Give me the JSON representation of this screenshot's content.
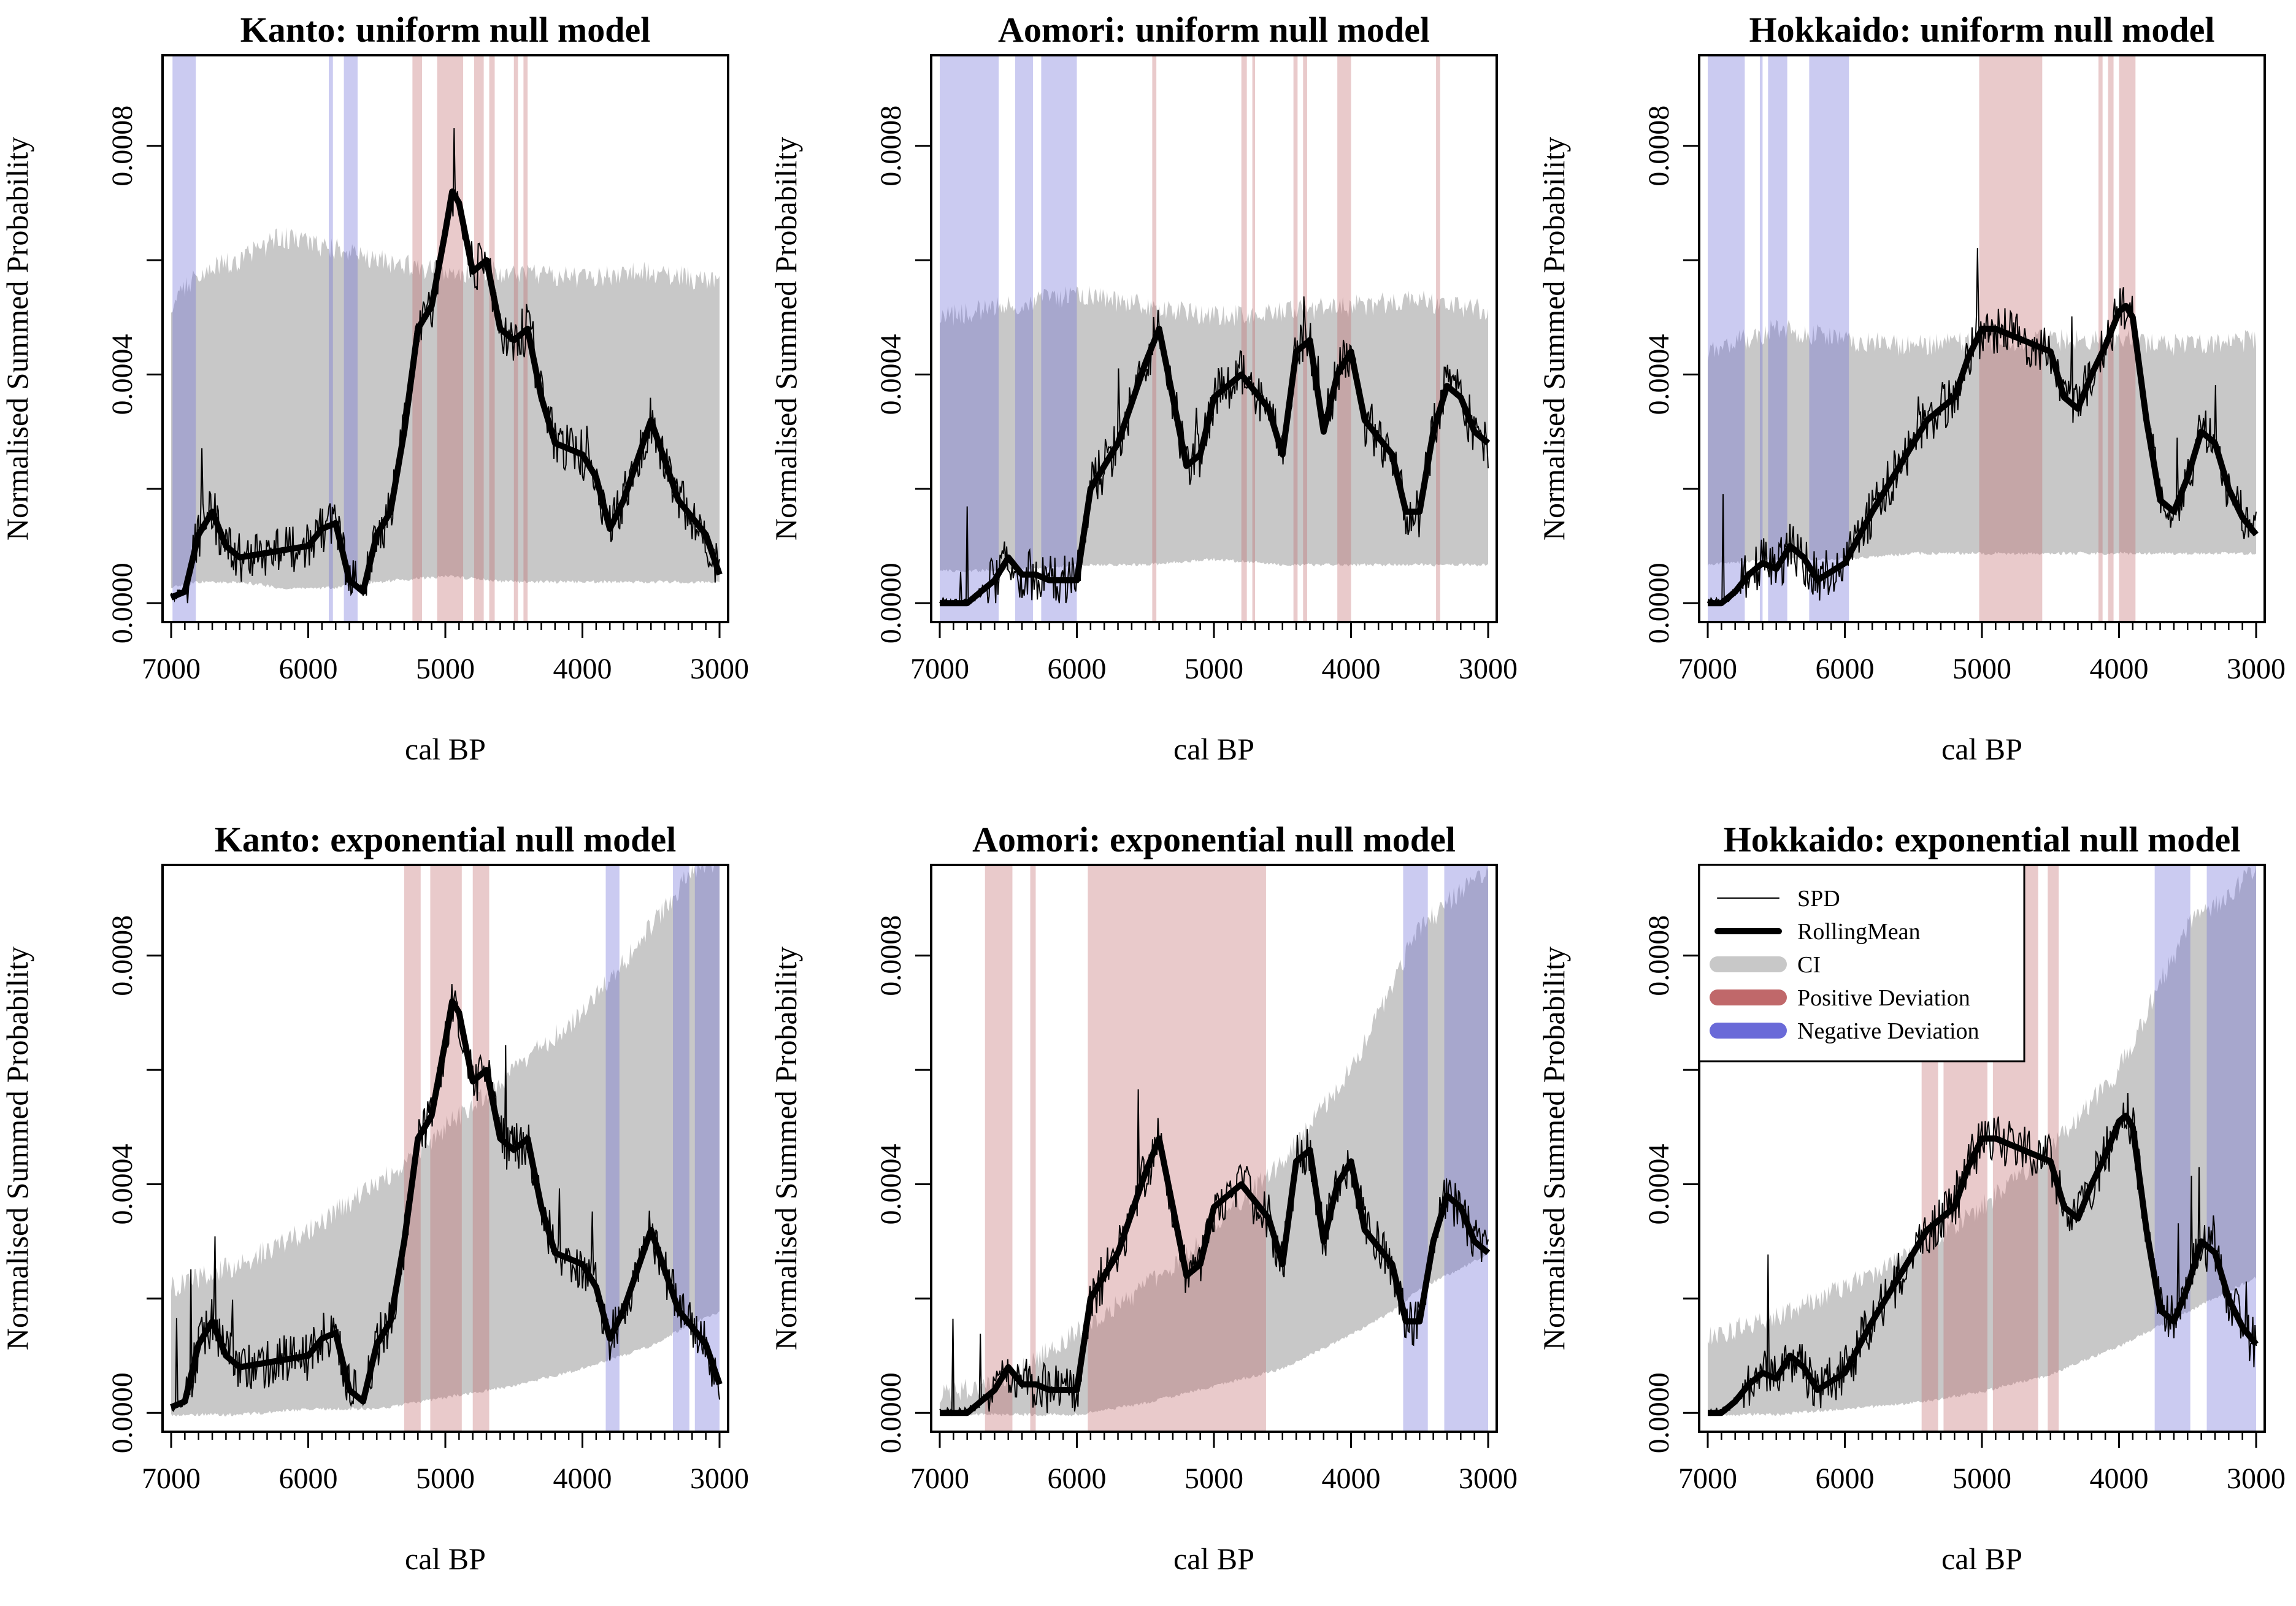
{
  "colors": {
    "ci": "#c8c8c8",
    "positive": "#c0686a",
    "negative": "#6a6ad8",
    "line": "#000000"
  },
  "x_ticks": [
    7000,
    6000,
    5000,
    4000,
    3000
  ],
  "y_ticks": [
    "0.0000",
    "0.0004",
    "0.0008"
  ],
  "legend": {
    "items": [
      {
        "label": "SPD",
        "style": "thin-line"
      },
      {
        "label": "RollingMean",
        "style": "thick-line"
      },
      {
        "label": "CI",
        "style": "ci-band"
      },
      {
        "label": "Positive Deviation",
        "style": "positive-band"
      },
      {
        "label": "Negative Deviation",
        "style": "negative-band"
      }
    ]
  },
  "chart_data": [
    {
      "type": "line",
      "title": "Kanto: uniform null model",
      "xlabel": "cal BP",
      "ylabel": "Normalised Summed Probability",
      "xlim": [
        7000,
        3000
      ],
      "ylim": [
        0,
        0.00095
      ],
      "series": [
        {
          "name": "RollingMean",
          "x": [
            7000,
            6900,
            6800,
            6700,
            6600,
            6500,
            6000,
            5900,
            5800,
            5700,
            5600,
            5500,
            5400,
            5300,
            5200,
            5100,
            5000,
            4950,
            4900,
            4800,
            4700,
            4600,
            4500,
            4400,
            4300,
            4200,
            4000,
            3900,
            3800,
            3700,
            3500,
            3300,
            3100,
            3000
          ],
          "y": [
            1e-05,
            2e-05,
            0.00012,
            0.00016,
            0.0001,
            8e-05,
            0.0001,
            0.00013,
            0.00014,
            4e-05,
            2e-05,
            0.00012,
            0.00016,
            0.0003,
            0.00048,
            0.00052,
            0.00065,
            0.00072,
            0.0007,
            0.00058,
            0.0006,
            0.00048,
            0.00046,
            0.00048,
            0.00036,
            0.00028,
            0.00026,
            0.00022,
            0.00013,
            0.00018,
            0.00032,
            0.00018,
            0.00012,
            5e-05
          ]
        }
      ],
      "ci": {
        "x": [
          7000,
          6800,
          6500,
          6200,
          5800,
          5500,
          5000,
          4500,
          4000,
          3500,
          3000
        ],
        "upper": [
          0.00052,
          0.00058,
          0.0006,
          0.00064,
          0.00062,
          0.0006,
          0.00058,
          0.00058,
          0.00057,
          0.00058,
          0.00056
        ],
        "lower": [
          3e-05,
          4e-05,
          4e-05,
          3e-05,
          3e-05,
          4e-05,
          5e-05,
          4e-05,
          4e-05,
          4e-05,
          4e-05
        ]
      },
      "positive_deviation": [
        [
          5240,
          5170
        ],
        [
          5060,
          4870
        ],
        [
          4790,
          4720
        ],
        [
          4680,
          4640
        ],
        [
          4500,
          4470
        ],
        [
          4430,
          4400
        ]
      ],
      "negative_deviation": [
        [
          6990,
          6820
        ],
        [
          5850,
          5820
        ],
        [
          5740,
          5640
        ]
      ]
    },
    {
      "type": "line",
      "title": "Aomori: uniform null model",
      "xlabel": "cal BP",
      "ylabel": "Normalised Summed Probability",
      "xlim": [
        7000,
        3000
      ],
      "ylim": [
        0,
        0.00095
      ],
      "series": [
        {
          "name": "RollingMean",
          "x": [
            7000,
            6800,
            6600,
            6500,
            6400,
            6300,
            6200,
            6000,
            5900,
            5700,
            5500,
            5400,
            5300,
            5200,
            5100,
            5000,
            4800,
            4600,
            4500,
            4400,
            4300,
            4200,
            4100,
            4000,
            3900,
            3700,
            3600,
            3500,
            3400,
            3300,
            3200,
            3100,
            3000
          ],
          "y": [
            0,
            0,
            4e-05,
            8e-05,
            5e-05,
            5e-05,
            4e-05,
            4e-05,
            0.0002,
            0.00028,
            0.00042,
            0.00048,
            0.00036,
            0.00024,
            0.00026,
            0.00036,
            0.0004,
            0.00034,
            0.00026,
            0.00044,
            0.00046,
            0.0003,
            0.0004,
            0.00044,
            0.00032,
            0.00026,
            0.00016,
            0.00016,
            0.0003,
            0.00038,
            0.00036,
            0.0003,
            0.00028
          ]
        }
      ],
      "ci": {
        "x": [
          7000,
          6500,
          6000,
          5500,
          5000,
          4500,
          4000,
          3500,
          3000
        ],
        "upper": [
          0.0005,
          0.00052,
          0.00054,
          0.00052,
          0.0005,
          0.00051,
          0.00052,
          0.00053,
          0.00051
        ],
        "lower": [
          6e-05,
          6e-05,
          7e-05,
          7e-05,
          8e-05,
          7e-05,
          7e-05,
          7e-05,
          7e-05
        ]
      },
      "positive_deviation": [
        [
          5450,
          5420
        ],
        [
          4800,
          4760
        ],
        [
          4720,
          4700
        ],
        [
          4420,
          4390
        ],
        [
          4350,
          4320
        ],
        [
          4100,
          4000
        ],
        [
          3380,
          3350
        ]
      ],
      "negative_deviation": [
        [
          7000,
          6570
        ],
        [
          6450,
          6320
        ],
        [
          6260,
          6000
        ]
      ]
    },
    {
      "type": "line",
      "title": "Hokkaido: uniform null model",
      "xlabel": "cal BP",
      "ylabel": "Normalised Summed Probability",
      "xlim": [
        7000,
        3000
      ],
      "ylim": [
        0,
        0.00095
      ],
      "series": [
        {
          "name": "RollingMean",
          "x": [
            7000,
            6900,
            6800,
            6700,
            6600,
            6500,
            6400,
            6300,
            6200,
            6000,
            5800,
            5600,
            5400,
            5300,
            5200,
            5100,
            5000,
            4900,
            4700,
            4500,
            4400,
            4300,
            4200,
            4100,
            4000,
            3950,
            3900,
            3800,
            3700,
            3600,
            3500,
            3400,
            3300,
            3200,
            3100,
            3000
          ],
          "y": [
            0,
            0,
            2e-05,
            5e-05,
            7e-05,
            6e-05,
            0.0001,
            8e-05,
            4e-05,
            7e-05,
            0.00016,
            0.00024,
            0.00032,
            0.00034,
            0.00036,
            0.00043,
            0.00048,
            0.00048,
            0.00046,
            0.00044,
            0.00036,
            0.00034,
            0.0004,
            0.00045,
            0.00051,
            0.00052,
            0.0005,
            0.00032,
            0.00018,
            0.00016,
            0.00022,
            0.0003,
            0.00028,
            0.0002,
            0.00015,
            0.00012
          ]
        }
      ],
      "ci": {
        "x": [
          7000,
          6500,
          6000,
          5500,
          5000,
          4500,
          4000,
          3500,
          3000
        ],
        "upper": [
          0.00044,
          0.00048,
          0.00046,
          0.00045,
          0.00046,
          0.00046,
          0.00046,
          0.00045,
          0.00046
        ],
        "lower": [
          7e-05,
          8e-05,
          8e-05,
          9e-05,
          9e-05,
          9e-05,
          9e-05,
          9e-05,
          9e-05
        ]
      },
      "positive_deviation": [
        [
          5020,
          4560
        ],
        [
          4150,
          4120
        ],
        [
          4080,
          4040
        ],
        [
          4000,
          3880
        ]
      ],
      "negative_deviation": [
        [
          7000,
          6730
        ],
        [
          6620,
          6600
        ],
        [
          6560,
          6420
        ],
        [
          6260,
          5970
        ]
      ]
    },
    {
      "type": "line",
      "title": "Kanto: exponential null model",
      "xlabel": "cal BP",
      "ylabel": "Normalised Summed Probability",
      "xlim": [
        7000,
        3000
      ],
      "ylim": [
        0,
        0.00095
      ],
      "series": [
        {
          "name": "RollingMean",
          "x": [
            7000,
            6900,
            6800,
            6700,
            6600,
            6500,
            6000,
            5900,
            5800,
            5700,
            5600,
            5500,
            5400,
            5300,
            5200,
            5100,
            5000,
            4950,
            4900,
            4800,
            4700,
            4600,
            4500,
            4400,
            4300,
            4200,
            4000,
            3900,
            3800,
            3700,
            3500,
            3300,
            3100,
            3000
          ],
          "y": [
            1e-05,
            2e-05,
            0.00012,
            0.00016,
            0.0001,
            8e-05,
            0.0001,
            0.00013,
            0.00014,
            4e-05,
            2e-05,
            0.00012,
            0.00016,
            0.0003,
            0.00048,
            0.00052,
            0.00065,
            0.00072,
            0.0007,
            0.00058,
            0.0006,
            0.00048,
            0.00046,
            0.00048,
            0.00036,
            0.00028,
            0.00026,
            0.00022,
            0.00013,
            0.00018,
            0.00032,
            0.00018,
            0.00012,
            5e-05
          ]
        }
      ],
      "ci": {
        "x": [
          7000,
          6500,
          6000,
          5500,
          5000,
          4500,
          4000,
          3500,
          3200,
          3000
        ],
        "upper": [
          0.00022,
          0.00026,
          0.00032,
          0.0004,
          0.0005,
          0.0006,
          0.0007,
          0.00085,
          0.00095,
          0.00095
        ],
        "lower": [
          0,
          0,
          1e-05,
          1e-05,
          3e-05,
          5e-05,
          8e-05,
          0.00012,
          0.00016,
          0.00018
        ]
      },
      "positive_deviation": [
        [
          5300,
          5180
        ],
        [
          5110,
          4880
        ],
        [
          4800,
          4680
        ]
      ],
      "negative_deviation": [
        [
          3830,
          3730
        ],
        [
          3340,
          3220
        ],
        [
          3180,
          3000
        ]
      ]
    },
    {
      "type": "line",
      "title": "Aomori: exponential null model",
      "xlabel": "cal BP",
      "ylabel": "Normalised Summed Probability",
      "xlim": [
        7000,
        3000
      ],
      "ylim": [
        0,
        0.00095
      ],
      "series": [
        {
          "name": "RollingMean",
          "x": [
            7000,
            6800,
            6600,
            6500,
            6400,
            6300,
            6200,
            6000,
            5900,
            5700,
            5500,
            5400,
            5300,
            5200,
            5100,
            5000,
            4800,
            4600,
            4500,
            4400,
            4300,
            4200,
            4100,
            4000,
            3900,
            3700,
            3600,
            3500,
            3400,
            3300,
            3200,
            3100,
            3000
          ],
          "y": [
            0,
            0,
            4e-05,
            8e-05,
            5e-05,
            5e-05,
            4e-05,
            4e-05,
            0.0002,
            0.00028,
            0.00042,
            0.00048,
            0.00036,
            0.00024,
            0.00026,
            0.00036,
            0.0004,
            0.00034,
            0.00026,
            0.00044,
            0.00046,
            0.0003,
            0.0004,
            0.00044,
            0.00032,
            0.00026,
            0.00016,
            0.00016,
            0.0003,
            0.00038,
            0.00036,
            0.0003,
            0.00028
          ]
        }
      ],
      "ci": {
        "x": [
          7000,
          6500,
          6000,
          5500,
          5000,
          4500,
          4000,
          3700,
          3500,
          3000
        ],
        "upper": [
          3e-05,
          6e-05,
          0.00014,
          0.00022,
          0.00032,
          0.00044,
          0.0006,
          0.00075,
          0.00085,
          0.00095
        ],
        "lower": [
          0,
          0,
          0,
          2e-05,
          5e-05,
          8e-05,
          0.00014,
          0.00018,
          0.00022,
          0.00028
        ]
      },
      "positive_deviation": [
        [
          6670,
          6470
        ],
        [
          6340,
          6300
        ],
        [
          5920,
          4620
        ]
      ],
      "negative_deviation": [
        [
          3620,
          3440
        ],
        [
          3320,
          3000
        ]
      ]
    },
    {
      "type": "line",
      "title": "Hokkaido: exponential null model",
      "xlabel": "cal BP",
      "ylabel": "Normalised Summed Probability",
      "xlim": [
        7000,
        3000
      ],
      "ylim": [
        0,
        0.00095
      ],
      "series": [
        {
          "name": "RollingMean",
          "x": [
            7000,
            6900,
            6800,
            6700,
            6600,
            6500,
            6400,
            6300,
            6200,
            6000,
            5800,
            5600,
            5400,
            5300,
            5200,
            5100,
            5000,
            4900,
            4700,
            4500,
            4400,
            4300,
            4200,
            4100,
            4000,
            3950,
            3900,
            3800,
            3700,
            3600,
            3500,
            3400,
            3300,
            3200,
            3100,
            3000
          ],
          "y": [
            0,
            0,
            2e-05,
            5e-05,
            7e-05,
            6e-05,
            0.0001,
            8e-05,
            4e-05,
            7e-05,
            0.00016,
            0.00024,
            0.00032,
            0.00034,
            0.00036,
            0.00043,
            0.00048,
            0.00048,
            0.00046,
            0.00044,
            0.00036,
            0.00034,
            0.0004,
            0.00045,
            0.00051,
            0.00052,
            0.0005,
            0.00032,
            0.00018,
            0.00016,
            0.00022,
            0.0003,
            0.00028,
            0.0002,
            0.00015,
            0.00012
          ]
        }
      ],
      "ci": {
        "x": [
          7000,
          6500,
          6000,
          5500,
          5000,
          4500,
          4000,
          3500,
          3000
        ],
        "upper": [
          0.00013,
          0.00017,
          0.00022,
          0.00028,
          0.00036,
          0.00046,
          0.0006,
          0.00085,
          0.00095
        ],
        "lower": [
          0,
          0,
          1e-05,
          2e-05,
          4e-05,
          7e-05,
          0.00012,
          0.00018,
          0.00024
        ]
      },
      "positive_deviation": [
        [
          5440,
          5320
        ],
        [
          5280,
          4960
        ],
        [
          4920,
          4590
        ],
        [
          4520,
          4440
        ]
      ],
      "negative_deviation": [
        [
          3740,
          3480
        ],
        [
          3360,
          3000
        ]
      ]
    }
  ]
}
